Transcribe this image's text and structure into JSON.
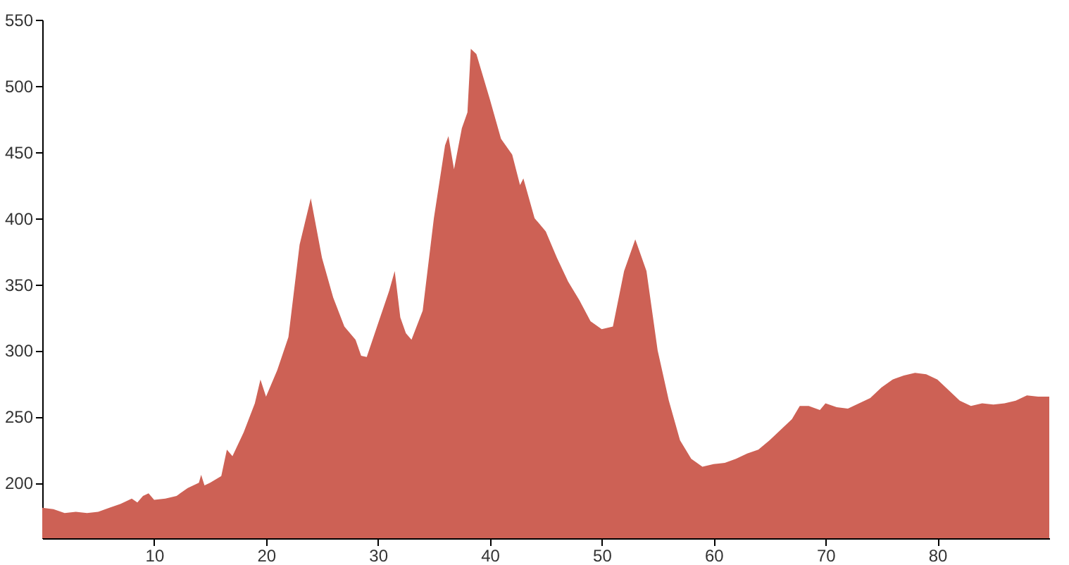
{
  "chart_data": {
    "type": "area",
    "color": "#cd6155",
    "x": [
      0,
      1,
      2,
      3,
      4,
      5,
      6,
      7,
      8,
      8.5,
      9,
      9.5,
      10,
      11,
      12,
      13,
      14,
      14.2,
      14.5,
      15,
      16,
      16.5,
      17,
      18,
      19,
      19.5,
      20,
      21,
      22,
      23,
      24,
      25,
      26,
      27,
      28,
      28.5,
      29,
      30,
      31,
      31.5,
      32,
      32.5,
      33,
      34,
      35,
      36,
      36.3,
      36.8,
      37.5,
      38,
      38.3,
      38.8,
      40,
      41,
      42,
      42.7,
      43,
      44,
      45,
      46,
      47,
      48,
      49,
      50,
      51,
      52,
      53,
      54,
      55,
      56,
      57,
      58,
      59,
      60,
      61,
      62,
      63,
      64,
      65,
      66,
      67,
      67.7,
      68.5,
      69.5,
      70,
      71,
      72,
      73,
      74,
      75,
      76,
      77,
      78,
      79,
      80,
      81,
      82,
      83,
      84,
      85,
      86,
      87,
      88,
      89,
      90
    ],
    "values": [
      181,
      180,
      177,
      178,
      177,
      178,
      181,
      184,
      188,
      185,
      190,
      192,
      187,
      188,
      190,
      196,
      200,
      206,
      198,
      200,
      205,
      225,
      220,
      238,
      260,
      278,
      265,
      285,
      310,
      380,
      415,
      370,
      340,
      318,
      308,
      296,
      295,
      320,
      345,
      360,
      325,
      313,
      308,
      330,
      400,
      455,
      462,
      437,
      468,
      480,
      528,
      524,
      490,
      460,
      448,
      425,
      430,
      400,
      390,
      370,
      352,
      338,
      322,
      316,
      318,
      360,
      384,
      360,
      300,
      262,
      232,
      218,
      212,
      214,
      215,
      218,
      222,
      225,
      232,
      240,
      248,
      258,
      258,
      255,
      260,
      257,
      256,
      260,
      264,
      272,
      278,
      281,
      283,
      282,
      278,
      270,
      262,
      258,
      260,
      259,
      260,
      262,
      266,
      265,
      265
    ],
    "xlim": [
      0,
      90
    ],
    "xticks": [
      10,
      20,
      30,
      40,
      50,
      60,
      70,
      80
    ],
    "ylim": [
      158,
      550
    ],
    "yticks": [
      200,
      250,
      300,
      350,
      400,
      450,
      500,
      550
    ],
    "grid": false
  }
}
